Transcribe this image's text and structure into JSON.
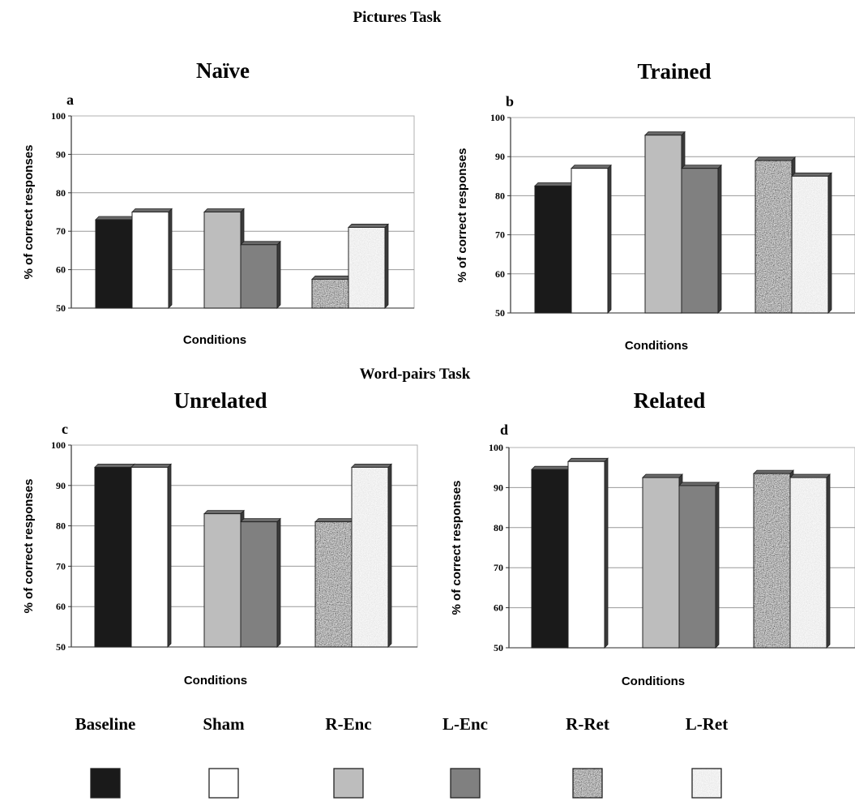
{
  "figure": {
    "section_titles": [
      "Pictures Task",
      "Word-pairs Task"
    ]
  },
  "conditions": [
    "Baseline",
    "Sham",
    "R-Enc",
    "L-Enc",
    "R-Ret",
    "L-Ret"
  ],
  "colors": {
    "Baseline": "#1a1a1a",
    "Sham": "#ffffff",
    "R-Enc": "#bdbdbd",
    "L-Enc": "#808080",
    "R-Ret": "#9a9a9a",
    "L-Ret": "#eeeeee",
    "outline": "#222222",
    "grid": "#999999"
  },
  "chart_data": [
    {
      "type": "bar",
      "panel": "a",
      "title": "Naïve",
      "xlabel": "Conditions",
      "ylabel": "% of correct responses",
      "ylim": [
        50,
        100
      ],
      "yticks": [
        50,
        60,
        70,
        80,
        90,
        100
      ],
      "grid": true,
      "categories": [
        "Baseline",
        "Sham",
        "R-Enc",
        "L-Enc",
        "R-Ret",
        "L-Ret"
      ],
      "values": [
        73,
        75,
        75,
        66.5,
        57.5,
        71
      ]
    },
    {
      "type": "bar",
      "panel": "b",
      "title": "Trained",
      "xlabel": "Conditions",
      "ylabel": "% of correct responses",
      "ylim": [
        50,
        100
      ],
      "yticks": [
        50,
        60,
        70,
        80,
        90,
        100
      ],
      "grid": true,
      "categories": [
        "Baseline",
        "Sham",
        "R-Enc",
        "L-Enc",
        "R-Ret",
        "L-Ret"
      ],
      "values": [
        82.5,
        87,
        95.5,
        87,
        89,
        85
      ]
    },
    {
      "type": "bar",
      "panel": "c",
      "title": "Unrelated",
      "xlabel": "Conditions",
      "ylabel": "% of correct responses",
      "ylim": [
        50,
        100
      ],
      "yticks": [
        50,
        60,
        70,
        80,
        90,
        100
      ],
      "grid": true,
      "categories": [
        "Baseline",
        "Sham",
        "R-Enc",
        "L-Enc",
        "R-Ret",
        "L-Ret"
      ],
      "values": [
        94.5,
        94.5,
        83,
        81,
        81,
        94.5
      ]
    },
    {
      "type": "bar",
      "panel": "d",
      "title": "Related",
      "xlabel": "Conditions",
      "ylabel": "% of correct responses",
      "ylim": [
        50,
        100
      ],
      "yticks": [
        50,
        60,
        70,
        80,
        90,
        100
      ],
      "grid": true,
      "categories": [
        "Baseline",
        "Sham",
        "R-Enc",
        "L-Enc",
        "R-Ret",
        "L-Ret"
      ],
      "values": [
        94.5,
        96.5,
        92.5,
        90.5,
        93.5,
        92.5
      ]
    }
  ],
  "legend": {
    "placement": "bottom",
    "items": [
      "Baseline",
      "Sham",
      "R-Enc",
      "L-Enc",
      "R-Ret",
      "L-Ret"
    ]
  }
}
